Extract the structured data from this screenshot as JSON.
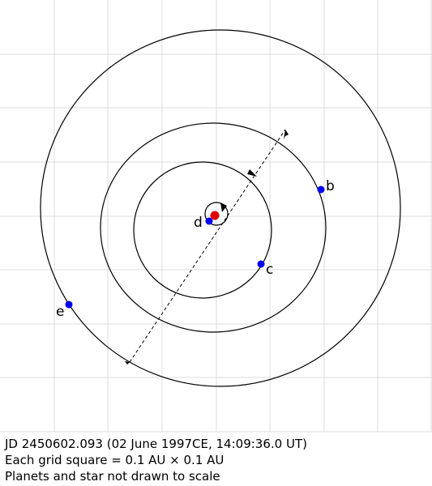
{
  "planets": [
    {
      "label": "b"
    },
    {
      "label": "c"
    },
    {
      "label": "d"
    },
    {
      "label": "e"
    }
  ],
  "caption": [
    "JD 2450602.093 (02 June 1997CE, 14:09:36.0 UT)",
    "Each grid square = 0.1 AU × 0.1 AU",
    "Planets and star not drawn to scale"
  ]
}
